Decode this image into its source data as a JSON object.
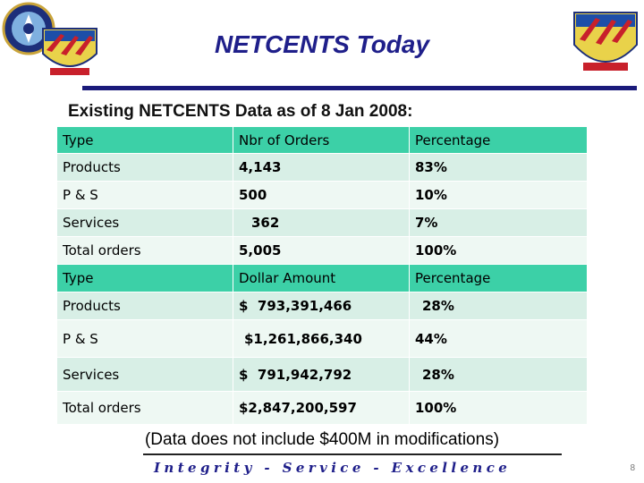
{
  "header": {
    "title": "NETCENTS Today"
  },
  "subtitle": "Existing NETCENTS Data as of 8 Jan 2008:",
  "orders_table": {
    "headers": [
      "Type",
      "Nbr of Orders",
      "Percentage"
    ],
    "rows": [
      [
        "Products",
        "4,143",
        "83%"
      ],
      [
        "P & S",
        "500",
        "10%"
      ],
      [
        "Services",
        "362",
        "7%"
      ],
      [
        "Total orders",
        "5,005",
        "100%"
      ]
    ]
  },
  "dollars_table": {
    "headers": [
      "Type",
      "Dollar Amount",
      "Percentage"
    ],
    "rows": [
      [
        "Products",
        "$  793,391,466",
        "28%"
      ],
      [
        "P & S",
        "$1,261,866,340",
        "44%"
      ],
      [
        "Services",
        "$  791,942,792",
        "28%"
      ],
      [
        "Total orders",
        "$2,847,200,597",
        "100%"
      ]
    ]
  },
  "note": "(Data does not include $400M in modifications)",
  "footer": {
    "motto": "Integrity - Service - Excellence",
    "page_number": "8"
  },
  "colors": {
    "header_row": "#3cd0a7",
    "row_dark": "#d8efe6",
    "row_light": "#eef8f3",
    "title": "#1f1f8a"
  }
}
